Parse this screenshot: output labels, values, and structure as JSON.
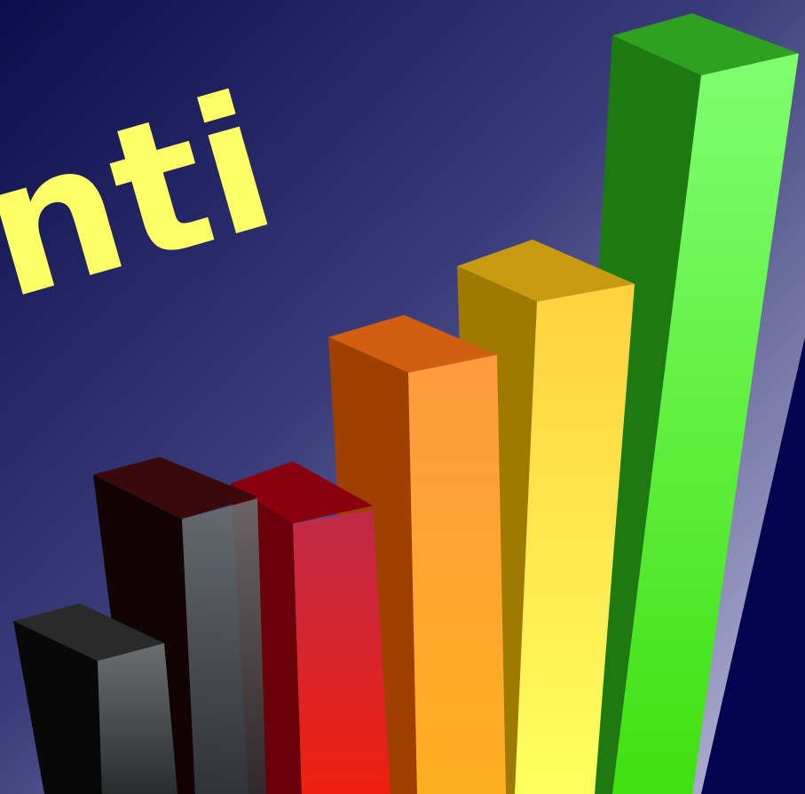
{
  "headline": {
    "text": "nti"
  }
}
